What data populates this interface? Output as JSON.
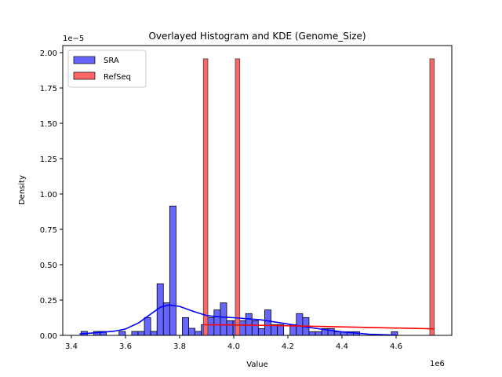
{
  "chart_data": {
    "type": "histogram",
    "title": "Overlayed Histogram and KDE (Genome_Size)",
    "xlabel": "Value",
    "ylabel": "Density",
    "x_offset_label": "1e6",
    "y_offset_label": "1e−5",
    "xlim": [
      3.37,
      4.805
    ],
    "ylim": [
      0,
      2.05
    ],
    "x_ticks": [
      3.4,
      3.6,
      3.8,
      4.0,
      4.2,
      4.4,
      4.6
    ],
    "x_tick_labels": [
      "3.4",
      "3.6",
      "3.8",
      "4.0",
      "4.2",
      "4.4",
      "4.6"
    ],
    "y_ticks": [
      0,
      0.25,
      0.5,
      0.75,
      1.0,
      1.25,
      1.5,
      1.75,
      2.0
    ],
    "y_tick_labels": [
      "0.00",
      "0.25",
      "0.50",
      "0.75",
      "1.00",
      "1.25",
      "1.50",
      "1.75",
      "2.00"
    ],
    "grid": false,
    "legend_position": "top-left",
    "series": [
      {
        "name": "SRA",
        "color": "#0000ff",
        "fill": "#6666ff",
        "bin_start": 3.4357,
        "bin_width": 0.0234,
        "densities": [
          0.028,
          0,
          0.028,
          0.028,
          0,
          0,
          0.028,
          0,
          0.028,
          0.028,
          0.126,
          0.028,
          0.365,
          0.23,
          0.915,
          0,
          0.126,
          0.05,
          0.028,
          0.076,
          0.126,
          0.18,
          0.23,
          0.104,
          0.104,
          0.104,
          0.154,
          0.104,
          0.048,
          0.18,
          0.076,
          0.076,
          0,
          0.076,
          0.154,
          0.126,
          0.026,
          0.026,
          0.048,
          0.048,
          0.026,
          0.026,
          0.026,
          0.026,
          0,
          0,
          0,
          0,
          0,
          0.026
        ],
        "kde": [
          [
            3.43,
            0.01
          ],
          [
            3.5,
            0.02
          ],
          [
            3.56,
            0.03
          ],
          [
            3.6,
            0.045
          ],
          [
            3.65,
            0.09
          ],
          [
            3.7,
            0.16
          ],
          [
            3.73,
            0.2
          ],
          [
            3.76,
            0.215
          ],
          [
            3.8,
            0.205
          ],
          [
            3.85,
            0.17
          ],
          [
            3.9,
            0.14
          ],
          [
            3.95,
            0.13
          ],
          [
            4.0,
            0.125
          ],
          [
            4.1,
            0.11
          ],
          [
            4.2,
            0.08
          ],
          [
            4.3,
            0.05
          ],
          [
            4.4,
            0.025
          ],
          [
            4.5,
            0.008
          ],
          [
            4.6,
            0.002
          ]
        ]
      },
      {
        "name": "RefSeq",
        "color": "#ff0000",
        "fill": "#ff6666",
        "bars": [
          [
            3.8878,
            1.956
          ],
          [
            4.0058,
            1.956
          ],
          [
            4.7246,
            1.956
          ]
        ],
        "bar_width": 0.0165,
        "kde": [
          [
            3.888,
            0.075
          ],
          [
            4.0,
            0.074
          ],
          [
            4.2,
            0.068
          ],
          [
            4.4,
            0.06
          ],
          [
            4.6,
            0.052
          ],
          [
            4.74,
            0.046
          ]
        ]
      }
    ]
  }
}
